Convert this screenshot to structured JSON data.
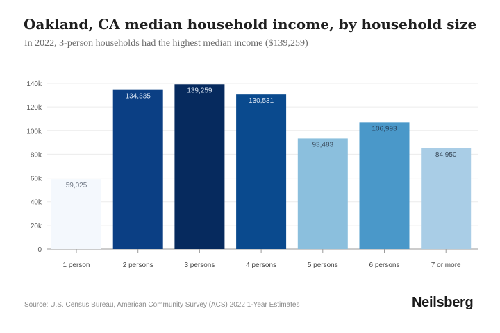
{
  "chart_data": {
    "type": "bar",
    "title": "Oakland, CA median household income, by household size",
    "subtitle": "In 2022, 3-person households had the highest median income ($139,259)",
    "xlabel": "",
    "ylabel": "",
    "categories": [
      "1 person",
      "2 persons",
      "3 persons",
      "4 persons",
      "5 persons",
      "6 persons",
      "7 or more"
    ],
    "values": [
      59025,
      134335,
      139259,
      130531,
      93483,
      106993,
      84950
    ],
    "value_labels": [
      "59,025",
      "134,335",
      "139,259",
      "130,531",
      "93,483",
      "106,993",
      "84,950"
    ],
    "bar_colors": [
      "#f4f8fd",
      "#0b3f84",
      "#062a5e",
      "#0a4a8e",
      "#8bbfdd",
      "#4a98c9",
      "#a9cde6"
    ],
    "label_colors": [
      "#6e7683",
      "#d6e2f1",
      "#d6e2f1",
      "#d6e2f1",
      "#3a4a5a",
      "#2a4560",
      "#3a4a5a"
    ],
    "ylim": [
      0,
      140000
    ],
    "yticks": [
      0,
      20000,
      40000,
      60000,
      80000,
      100000,
      120000,
      140000
    ],
    "ytick_labels": [
      "0",
      "20k",
      "40k",
      "60k",
      "80k",
      "100k",
      "120k",
      "140k"
    ],
    "grid": true,
    "legend": "none"
  },
  "footer": {
    "source": "Source: U.S. Census Bureau, American Community Survey (ACS) 2022 1-Year Estimates",
    "brand": "Neilsberg"
  }
}
